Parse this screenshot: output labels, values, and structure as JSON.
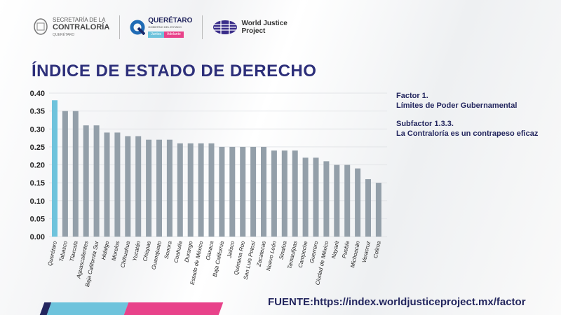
{
  "header": {
    "logos": [
      {
        "name": "secretaria-contraloria",
        "line1": "SECRETARÍA DE LA",
        "line2": "CONTRALORÍA",
        "sub": "QUERÉTARO"
      },
      {
        "name": "queretaro-gobierno",
        "line1": "QUERÉTARO",
        "line2": "GOBIERNO DEL ESTADO",
        "tag1": "Juntos",
        "tag2": "Adelante"
      },
      {
        "name": "world-justice-project",
        "line1": "World Justice",
        "line2": "Project"
      }
    ]
  },
  "title": "ÍNDICE DE ESTADO DE DERECHO",
  "side": {
    "factor": "Factor 1.",
    "factor_name": "Límites de Poder Gubernamental",
    "subfactor": "Subfactor 1.3.3.",
    "subfactor_name": "La Contraloría es un contrapeso eficaz"
  },
  "source": "FUENTE:https://index.worldjusticeproject.mx/factor",
  "colors": {
    "highlight": "#6ec3dc",
    "bar": "#939fa9",
    "title": "#2d2f7a",
    "navy": "#23265e",
    "pink": "#e8428a"
  },
  "chart_data": {
    "type": "bar",
    "title": "",
    "xlabel": "",
    "ylabel": "",
    "ylim": [
      0,
      0.4
    ],
    "yticks": [
      "0.00",
      "0.05",
      "0.10",
      "0.15",
      "0.20",
      "0.25",
      "0.30",
      "0.35",
      "0.40"
    ],
    "grid": true,
    "highlight": "Querétaro",
    "categories": [
      "Querétaro",
      "Tabasco",
      "Tlaxcala",
      "Aguascalientes",
      "Baja California Sur",
      "Hidalgo",
      "Morelos",
      "Chihuahua",
      "Yucatán",
      "Chiapas",
      "Guanajuato",
      "Sonora",
      "Coahuila",
      "Durango",
      "Estado de México",
      "Oaxaca",
      "Baja California",
      "Jalisco",
      "Quintana Roo",
      "San Luis Potosí",
      "Zacatecas",
      "Nuevo León",
      "Sinaloa",
      "Tamaulipas",
      "Campeche",
      "Guerrero",
      "Ciudad de México",
      "Nayarit",
      "Puebla",
      "Michoacán",
      "Veracruz",
      "Colima"
    ],
    "values": [
      0.38,
      0.35,
      0.35,
      0.31,
      0.31,
      0.29,
      0.29,
      0.28,
      0.28,
      0.27,
      0.27,
      0.27,
      0.26,
      0.26,
      0.26,
      0.26,
      0.25,
      0.25,
      0.25,
      0.25,
      0.25,
      0.24,
      0.24,
      0.24,
      0.22,
      0.22,
      0.21,
      0.2,
      0.2,
      0.19,
      0.16,
      0.15
    ]
  }
}
